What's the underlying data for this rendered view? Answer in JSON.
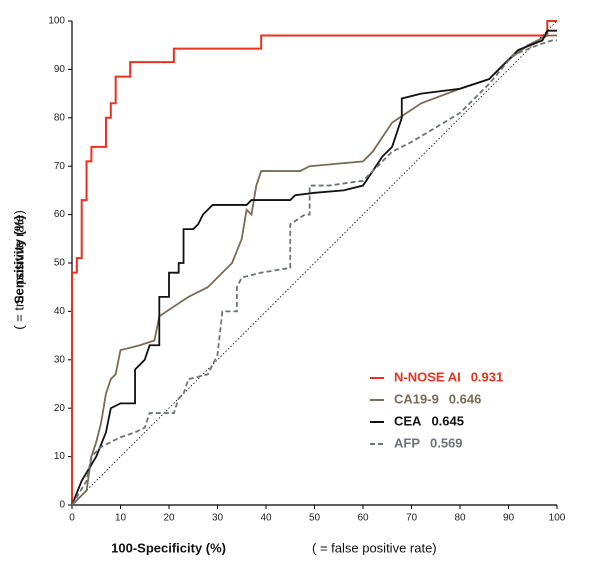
{
  "chart_data": {
    "type": "line",
    "x_label": "100-Specificity (%)",
    "x_label_note": "( = false positive rate)",
    "y_label": "Sensitivity (%)",
    "y_label_note": "( = true positive rate)",
    "xlim": [
      0,
      100
    ],
    "ylim": [
      0,
      100
    ],
    "xticks": [
      0,
      10,
      20,
      30,
      40,
      50,
      60,
      70,
      80,
      90,
      100
    ],
    "yticks": [
      0,
      10,
      20,
      30,
      40,
      50,
      60,
      70,
      80,
      90,
      100
    ],
    "diagonal": true,
    "series": [
      {
        "name": "N-NOSE AI",
        "auc": 0.931,
        "color": "#e8321e",
        "dashed": false,
        "x": [
          0,
          0,
          1,
          1,
          2,
          2,
          3,
          3,
          4,
          4,
          7,
          7,
          8,
          8,
          9,
          9,
          12,
          12,
          21,
          21,
          39,
          39,
          98,
          98,
          100
        ],
        "values": [
          0,
          48,
          48,
          51,
          51,
          63,
          63,
          71,
          71,
          74,
          74,
          80,
          80,
          83,
          83,
          88.5,
          88.5,
          91.5,
          91.5,
          94.3,
          94.3,
          97,
          97,
          100,
          100
        ]
      },
      {
        "name": "CA19-9",
        "auc": 0.646,
        "color": "#7a6b55",
        "dashed": false,
        "x": [
          0,
          3,
          4,
          5,
          6,
          7,
          8,
          9,
          10,
          14,
          17,
          18,
          24,
          28,
          30,
          33,
          35,
          36,
          37,
          38,
          39,
          47,
          49,
          60,
          62,
          64,
          66,
          72,
          80,
          86,
          90,
          94,
          98,
          100
        ],
        "values": [
          0,
          3,
          10,
          13,
          17,
          23,
          26,
          27,
          32,
          33,
          34,
          39,
          43,
          45,
          47,
          50,
          55,
          61,
          60,
          66,
          69,
          69,
          70,
          71,
          73,
          76,
          79,
          83,
          86,
          88,
          92,
          95,
          97,
          97
        ]
      },
      {
        "name": "CEA",
        "auc": 0.645,
        "color": "#111111",
        "dashed": false,
        "x": [
          0,
          2,
          5,
          7,
          8,
          10,
          13,
          13,
          15,
          16,
          18,
          18,
          20,
          20,
          22,
          22,
          23,
          23,
          25,
          26,
          27,
          29,
          36,
          37,
          45,
          46,
          50,
          56,
          60,
          64,
          66,
          68,
          68,
          72,
          80,
          86,
          92,
          97,
          98,
          100
        ],
        "values": [
          0,
          5,
          10,
          15,
          20,
          21,
          21,
          28,
          30,
          33,
          33,
          43,
          43,
          48,
          48,
          50,
          50,
          57,
          57,
          58,
          60,
          62,
          62,
          63,
          63,
          64,
          64.5,
          65,
          66,
          72,
          74,
          80,
          84,
          85,
          86,
          88,
          94,
          96,
          98,
          98
        ]
      },
      {
        "name": "AFP",
        "auc": 0.569,
        "color": "#6c7378",
        "dashed": true,
        "x": [
          0,
          3,
          4,
          6,
          8,
          10,
          13,
          15,
          16,
          21,
          22,
          23,
          24,
          28,
          29,
          30,
          31,
          34,
          34,
          35,
          39,
          45,
          45,
          48,
          49,
          49,
          53,
          60,
          64,
          66,
          70,
          80,
          86,
          91,
          96,
          99,
          100
        ],
        "values": [
          0,
          5,
          10,
          12,
          13,
          14,
          15,
          16,
          19,
          19,
          22,
          23,
          26,
          27,
          29,
          31,
          40,
          40,
          45,
          47,
          48,
          49,
          58,
          60,
          60,
          66,
          66,
          67,
          71,
          73,
          75,
          81,
          87,
          93,
          95,
          96,
          96
        ]
      }
    ]
  }
}
